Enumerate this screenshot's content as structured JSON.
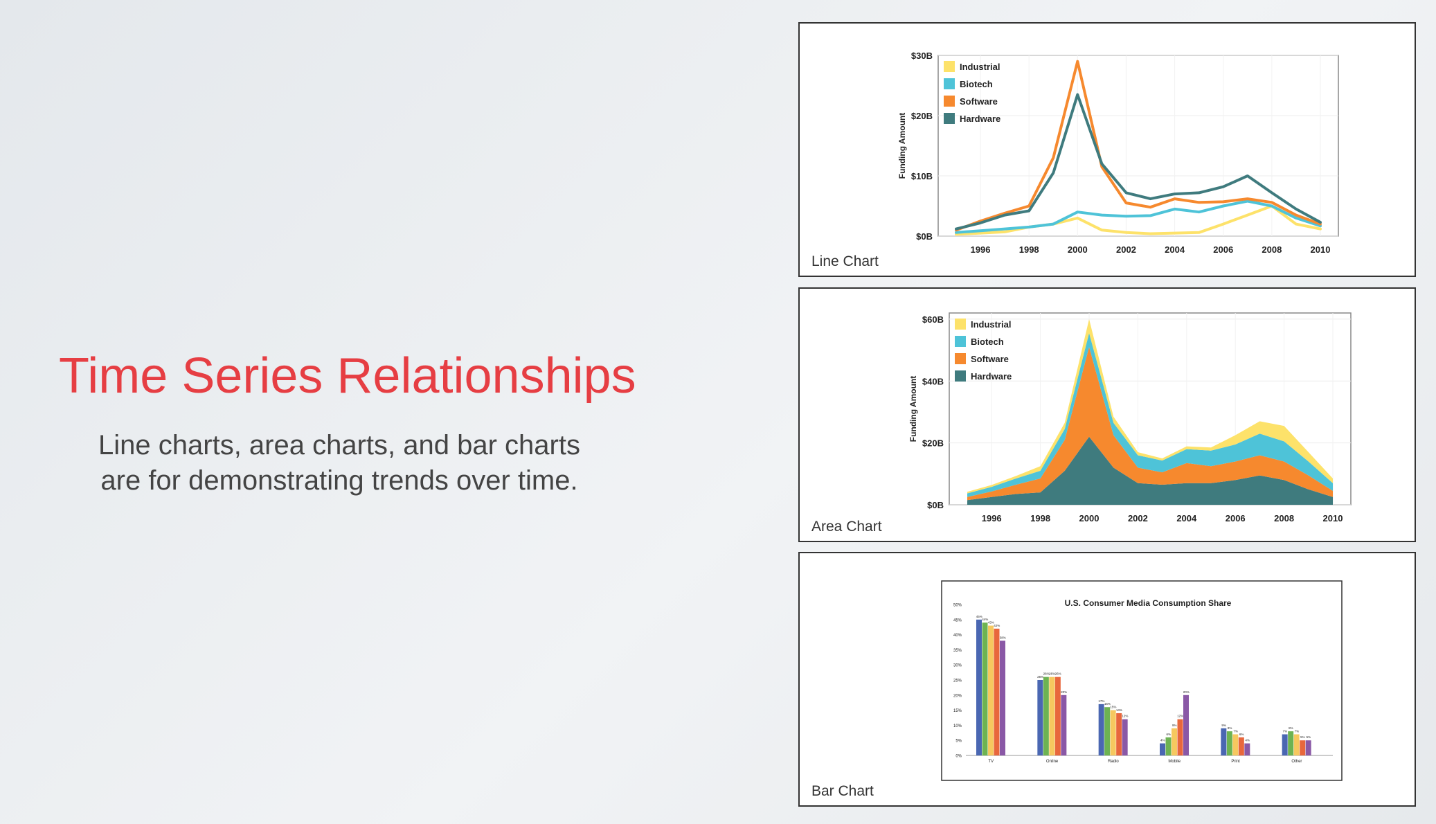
{
  "slide": {
    "title": "Time Series Relationships",
    "subtitle_line1": "Line charts, area charts, and bar charts",
    "subtitle_line2": "are for demonstrating trends over time."
  },
  "panels": [
    {
      "label": "Line Chart"
    },
    {
      "label": "Area Chart"
    },
    {
      "label": "Bar Chart"
    }
  ],
  "colors": {
    "title": "#e63e43",
    "industrial": "#fde26a",
    "biotech": "#4ec3d8",
    "software": "#f6892e",
    "hardware": "#3f7b7e",
    "tv": "#4a67b2",
    "online": "#6db352",
    "radio": "#f6c85f",
    "mobile": "#e8673c",
    "print": "#c0392b",
    "other": "#8a58a6"
  },
  "chart_data": [
    {
      "type": "line",
      "ylabel": "Funding Amount",
      "x": [
        1995,
        1996,
        1997,
        1998,
        1999,
        2000,
        2001,
        2002,
        2003,
        2004,
        2005,
        2006,
        2007,
        2008,
        2009,
        2010
      ],
      "x_ticks": [
        "1996",
        "1998",
        "2000",
        "2002",
        "2004",
        "2006",
        "2008",
        "2010"
      ],
      "y_ticks": [
        "$0B",
        "$10B",
        "$20B",
        "$30B"
      ],
      "ylim": [
        0,
        30
      ],
      "legend_position": "top-left",
      "series": [
        {
          "name": "Industrial",
          "values": [
            0.3,
            0.5,
            0.7,
            1.5,
            2.0,
            3.0,
            1.0,
            0.6,
            0.4,
            0.5,
            0.6,
            2.0,
            3.5,
            5.0,
            2.0,
            1.2
          ]
        },
        {
          "name": "Biotech",
          "values": [
            0.6,
            0.9,
            1.2,
            1.5,
            2.0,
            4.0,
            3.5,
            3.3,
            3.4,
            4.5,
            4.0,
            5.0,
            5.8,
            5.0,
            3.0,
            1.7
          ]
        },
        {
          "name": "Software",
          "values": [
            1.0,
            2.5,
            3.8,
            5.0,
            13.0,
            29.0,
            11.5,
            5.5,
            4.8,
            6.2,
            5.6,
            5.7,
            6.2,
            5.6,
            3.5,
            2.0
          ]
        },
        {
          "name": "Hardware",
          "values": [
            1.2,
            2.2,
            3.5,
            4.2,
            10.5,
            23.5,
            12.0,
            7.2,
            6.2,
            7.0,
            7.2,
            8.2,
            10.0,
            7.2,
            4.5,
            2.3
          ]
        }
      ]
    },
    {
      "type": "area",
      "stacked": true,
      "ylabel": "Funding Amount",
      "x": [
        1995,
        1996,
        1997,
        1998,
        1999,
        2000,
        2001,
        2002,
        2003,
        2004,
        2005,
        2006,
        2007,
        2008,
        2009,
        2010
      ],
      "x_ticks": [
        "1996",
        "1998",
        "2000",
        "2002",
        "2004",
        "2006",
        "2008",
        "2010"
      ],
      "y_ticks": [
        "$0B",
        "$20B",
        "$40B",
        "$60B"
      ],
      "ylim": [
        0,
        62
      ],
      "legend_position": "top-left",
      "series": [
        {
          "name": "Hardware",
          "values": [
            1.5,
            2.5,
            3.5,
            4.0,
            11.0,
            22.0,
            12.0,
            7.0,
            6.5,
            7.0,
            7.0,
            8.0,
            9.5,
            8.0,
            5.0,
            2.5
          ]
        },
        {
          "name": "Software",
          "values": [
            1.0,
            1.8,
            3.0,
            4.5,
            10.0,
            29.0,
            10.5,
            5.0,
            4.0,
            6.5,
            5.5,
            6.0,
            6.5,
            6.0,
            4.5,
            2.0
          ]
        },
        {
          "name": "Biotech",
          "values": [
            1.2,
            1.5,
            2.0,
            2.5,
            3.5,
            4.5,
            4.0,
            4.0,
            3.8,
            4.5,
            5.0,
            5.5,
            7.0,
            6.5,
            4.5,
            2.5
          ]
        },
        {
          "name": "Industrial",
          "values": [
            0.5,
            0.6,
            0.8,
            1.5,
            2.0,
            4.5,
            2.0,
            1.0,
            0.7,
            0.9,
            1.0,
            3.0,
            4.0,
            5.0,
            3.0,
            1.5
          ]
        }
      ]
    },
    {
      "type": "bar",
      "title": "U.S. Consumer Media Consumption Share",
      "categories": [
        "TV",
        "Online",
        "Radio",
        "Mobile",
        "Print",
        "Other"
      ],
      "y_ticks": [
        "0%",
        "5%",
        "10%",
        "15%",
        "20%",
        "25%",
        "30%",
        "35%",
        "40%",
        "45%",
        "50%"
      ],
      "ylim": [
        0,
        50
      ],
      "series": [
        {
          "values": [
            45,
            25,
            17,
            4,
            9,
            7
          ],
          "labels": [
            "45%",
            "25%",
            "17%",
            "4%",
            "9%",
            "7%"
          ]
        },
        {
          "values": [
            44,
            26,
            16,
            6,
            8,
            8
          ],
          "labels": [
            "44%",
            "26%",
            "16%",
            "6%",
            "8%",
            "8%"
          ]
        },
        {
          "values": [
            43,
            26,
            15,
            9,
            7,
            7
          ],
          "labels": [
            "43%",
            "26%",
            "15%",
            "9%",
            "7%",
            "7%"
          ]
        },
        {
          "values": [
            42,
            26,
            14,
            12,
            6,
            5
          ],
          "labels": [
            "42%",
            "26%",
            "14%",
            "12%",
            "6%",
            "5%"
          ]
        },
        {
          "values": [
            38,
            20,
            12,
            20,
            4,
            5
          ],
          "labels": [
            "38%",
            "20%",
            "12%",
            "20%",
            "4%",
            "5%"
          ]
        }
      ]
    }
  ]
}
